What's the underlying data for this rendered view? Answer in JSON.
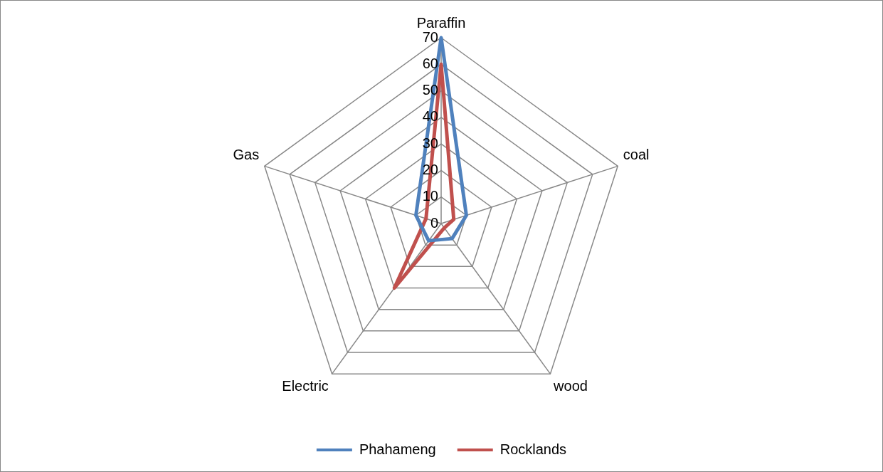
{
  "chart_data": {
    "type": "radar",
    "categories": [
      "Paraffin",
      "coal",
      "wood",
      "Electric",
      "Gas"
    ],
    "series": [
      {
        "name": "Phahameng",
        "color": "#4f81bd",
        "values": [
          70,
          10,
          7,
          8,
          10
        ]
      },
      {
        "name": "Rocklands",
        "color": "#c0504d",
        "values": [
          60,
          5,
          2,
          30,
          6
        ]
      }
    ],
    "ylim": [
      0,
      70
    ],
    "yticks": [
      0,
      10,
      20,
      30,
      40,
      50,
      60,
      70
    ],
    "grid": true,
    "legend": "bottom",
    "marker": "none"
  }
}
